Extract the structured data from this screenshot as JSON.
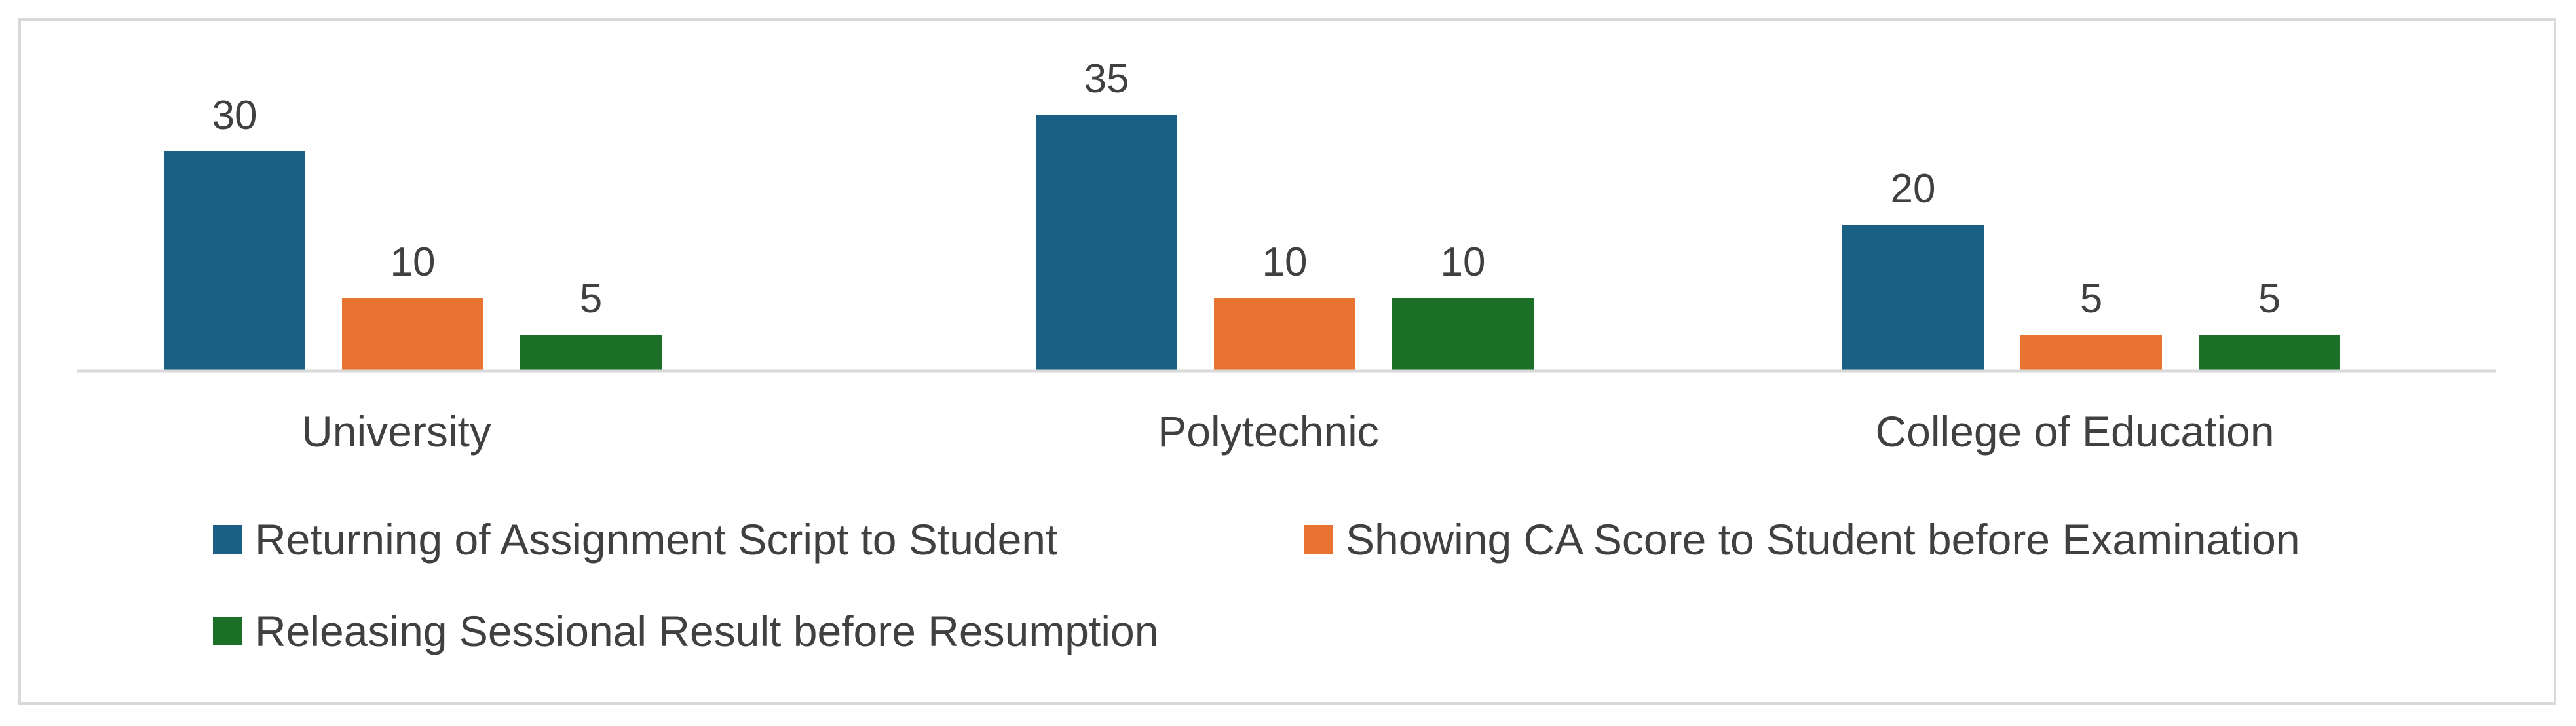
{
  "chart_data": {
    "type": "bar",
    "title": "",
    "xlabel": "",
    "ylabel": "",
    "ylim": [
      0,
      40
    ],
    "grid": false,
    "legend_position": "bottom",
    "categories": [
      "University",
      "Polytechnic",
      "College of Education"
    ],
    "series": [
      {
        "name": "Returning of Assignment Script to Student",
        "values": [
          30,
          35,
          20
        ],
        "color": "#1a6085"
      },
      {
        "name": "Showing CA Score to Student before Examination",
        "values": [
          10,
          10,
          5
        ],
        "color": "#e97432"
      },
      {
        "name": "Releasing Sessional Result before Resumption",
        "values": [
          5,
          10,
          5
        ],
        "color": "#1b6f27"
      }
    ],
    "axis_color": "#d9d9d9",
    "text_color": "#404040"
  }
}
